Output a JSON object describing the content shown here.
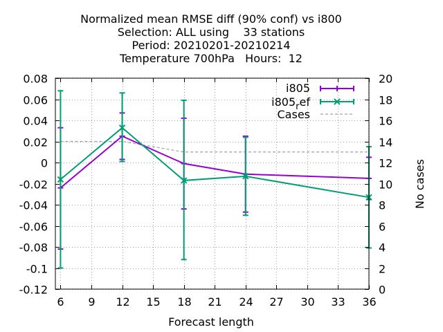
{
  "chart_data": {
    "type": "line",
    "title_lines": [
      "Normalized mean RMSE diff (90% conf) vs i800",
      "Selection: ALL using    33 stations",
      "Period: 20210201-20210214",
      "Temperature 700hPa   Hours:  12"
    ],
    "xlabel": "Forecast length",
    "ylabel": "",
    "y2label": "No cases",
    "xlim": [
      5.5,
      36
    ],
    "ylim": [
      -0.12,
      0.08
    ],
    "y2lim": [
      0,
      20
    ],
    "x_ticks": [
      6,
      9,
      12,
      15,
      18,
      21,
      24,
      27,
      30,
      33,
      36
    ],
    "y_ticks": [
      0.08,
      0.06,
      0.04,
      0.02,
      0,
      -0.02,
      -0.04,
      -0.06,
      -0.08,
      -0.1,
      -0.12
    ],
    "y2_ticks": [
      20,
      18,
      16,
      14,
      12,
      10,
      8,
      6,
      4,
      2,
      0
    ],
    "grid": true,
    "legend_position": "top-right",
    "series": [
      {
        "name": "i805",
        "color": "#9400d3",
        "marker": "plus",
        "axis": "y",
        "points": [
          {
            "x": 6,
            "y": -0.024,
            "lo": -0.082,
            "hi": 0.033
          },
          {
            "x": 12,
            "y": 0.025,
            "lo": 0.003,
            "hi": 0.047
          },
          {
            "x": 18,
            "y": -0.001,
            "lo": -0.044,
            "hi": 0.042
          },
          {
            "x": 24,
            "y": -0.011,
            "lo": -0.047,
            "hi": 0.025
          },
          {
            "x": 36,
            "y": -0.015,
            "lo": -0.035,
            "hi": 0.005
          }
        ]
      },
      {
        "name_main": "i805",
        "name_sub": "r",
        "name_tail": "ef",
        "color": "#009e73",
        "marker": "cross",
        "axis": "y",
        "points": [
          {
            "x": 6,
            "y": -0.016,
            "lo": -0.1,
            "hi": 0.068
          },
          {
            "x": 12,
            "y": 0.033,
            "lo": 0.001,
            "hi": 0.066
          },
          {
            "x": 18,
            "y": -0.017,
            "lo": -0.092,
            "hi": 0.059
          },
          {
            "x": 24,
            "y": -0.013,
            "lo": -0.05,
            "hi": 0.024
          },
          {
            "x": 36,
            "y": -0.033,
            "lo": -0.081,
            "hi": 0.015
          }
        ]
      },
      {
        "name": "Cases",
        "color": "#a0a0a0",
        "style": "dashed",
        "axis": "y2",
        "points": [
          {
            "x": 6,
            "y": 14
          },
          {
            "x": 12,
            "y": 14
          },
          {
            "x": 18,
            "y": 13
          },
          {
            "x": 24,
            "y": 13
          },
          {
            "x": 36,
            "y": 13
          }
        ]
      }
    ]
  }
}
